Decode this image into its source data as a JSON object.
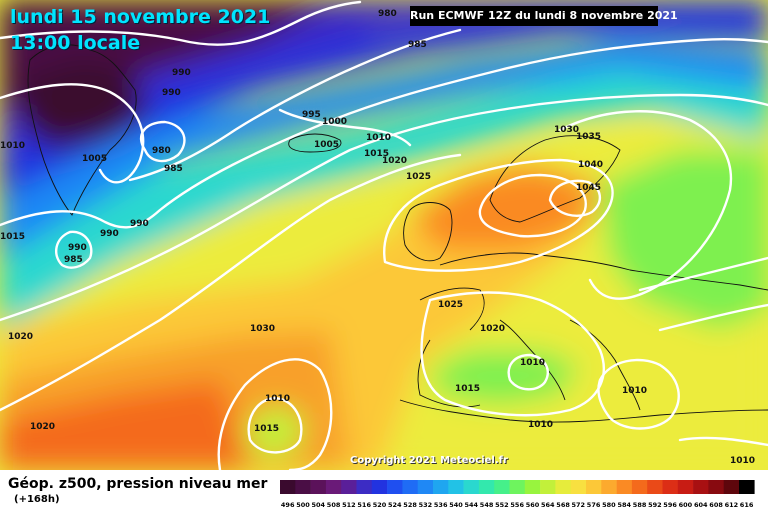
{
  "map": {
    "date_title": "lundi 15 novembre 2021",
    "time_title": "13:00 locale",
    "run_info": "Run ECMWF 12Z du lundi 8 novembre 2021",
    "copyright": "Copyright 2021 Meteociel.fr",
    "variable": "Géop. z500, pression niveau mer",
    "lead_time": "(+168h)",
    "pressure_labels": [
      "980",
      "985",
      "990",
      "990",
      "1010",
      "1005",
      "980",
      "985",
      "990",
      "990",
      "985",
      "1015",
      "990",
      "995",
      "1000",
      "1005",
      "1010",
      "1015",
      "1020",
      "1025",
      "1030",
      "1035",
      "1040",
      "1045",
      "1025",
      "1020",
      "1030",
      "1010",
      "1015",
      "1010",
      "1015",
      "1010",
      "1020",
      "1010",
      "1020",
      "1010"
    ]
  },
  "legend": {
    "values": [
      "496",
      "500",
      "504",
      "508",
      "512",
      "516",
      "520",
      "524",
      "528",
      "532",
      "536",
      "540",
      "544",
      "548",
      "552",
      "556",
      "560",
      "564",
      "568",
      "572",
      "576",
      "580",
      "584",
      "588",
      "592",
      "596",
      "600",
      "604",
      "608",
      "612",
      "616"
    ],
    "colors": [
      "#3a0a2e",
      "#4a0e45",
      "#5b125a",
      "#6a1a78",
      "#5a1f99",
      "#3c2cc4",
      "#2233e0",
      "#1f4ff0",
      "#1f6cf5",
      "#1f88f5",
      "#1fa6f0",
      "#22c2e6",
      "#2ad8cf",
      "#33e8ad",
      "#46f08a",
      "#6ef45e",
      "#98f43e",
      "#c2f03a",
      "#e6ec3c",
      "#f8e040",
      "#fcc838",
      "#fcaa2e",
      "#fa8a24",
      "#f46a1c",
      "#ea4a18",
      "#dc2e16",
      "#c81c14",
      "#a81012",
      "#880a10",
      "#5e060c",
      "#000000"
    ]
  }
}
